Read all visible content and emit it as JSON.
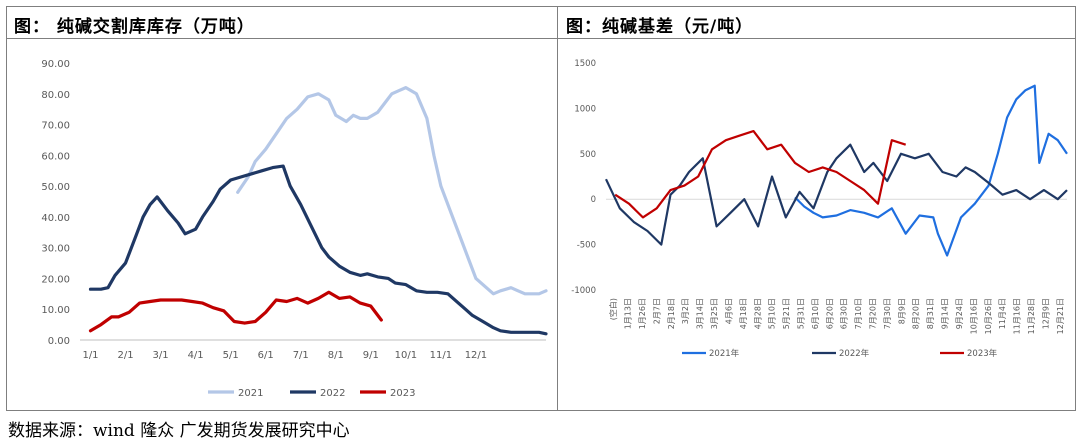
{
  "panels": [
    {
      "title": "图：  纯碱交割库库存（万吨）"
    },
    {
      "title": "图：纯碱基差（元/吨）"
    }
  ],
  "source": "数据来源：wind 隆众 广发期货发展研究中心",
  "chart_data": [
    {
      "type": "line",
      "title": "纯碱交割库库存（万吨）",
      "xlabel": "",
      "ylabel": "",
      "ylim": [
        0,
        90
      ],
      "yticks": [
        "0.00",
        "10.00",
        "20.00",
        "30.00",
        "40.00",
        "50.00",
        "60.00",
        "70.00",
        "80.00",
        "90.00"
      ],
      "xticks": [
        "1/1",
        "2/1",
        "3/1",
        "4/1",
        "5/1",
        "6/1",
        "7/1",
        "8/1",
        "9/1",
        "10/1",
        "11/1",
        "12/1"
      ],
      "grid": false,
      "legend": "bottom",
      "series": [
        {
          "name": "2021",
          "color": "#b4c7e7",
          "x": [
            4.5,
            4.8,
            5.0,
            5.3,
            5.6,
            5.9,
            6.2,
            6.5,
            6.8,
            7.1,
            7.3,
            7.6,
            7.8,
            8.0,
            8.2,
            8.5,
            8.7,
            8.9,
            9.1,
            9.3,
            9.6,
            9.9,
            10.1,
            10.3,
            10.6,
            10.9,
            11.1,
            11.3,
            11.6,
            11.8,
            12.0,
            12.3,
            12.5,
            12.7,
            12.9,
            13.1,
            13.3
          ],
          "y": [
            48,
            53,
            58,
            62,
            67,
            72,
            75,
            79,
            80,
            78,
            73,
            71,
            73,
            72,
            72,
            74,
            77,
            80,
            81,
            82,
            80,
            72,
            60,
            50,
            41,
            32,
            26,
            20,
            17,
            15,
            16,
            17,
            16,
            15,
            15,
            15,
            16
          ]
        },
        {
          "name": "2022",
          "color": "#1f3864",
          "x": [
            0.3,
            0.6,
            0.8,
            1.0,
            1.3,
            1.6,
            1.8,
            2.0,
            2.2,
            2.5,
            2.8,
            3.0,
            3.3,
            3.5,
            3.8,
            4.0,
            4.3,
            4.6,
            4.9,
            5.2,
            5.5,
            5.8,
            6.0,
            6.3,
            6.6,
            6.9,
            7.1,
            7.4,
            7.7,
            8.0,
            8.2,
            8.5,
            8.8,
            9.0,
            9.3,
            9.6,
            9.9,
            10.2,
            10.5,
            10.8,
            11.0,
            11.2,
            11.5,
            11.8,
            12.0,
            12.3,
            12.6,
            12.9,
            13.1,
            13.3
          ],
          "y": [
            16.5,
            16.5,
            17,
            21,
            25,
            34,
            40,
            44,
            46.5,
            42,
            38,
            34.5,
            36,
            40,
            45,
            49,
            52,
            53,
            54,
            55,
            56,
            56.5,
            50,
            44,
            37,
            30,
            27,
            24,
            22,
            21,
            21.5,
            20.5,
            20,
            18.5,
            18,
            16,
            15.5,
            15.5,
            15,
            12,
            10,
            8,
            6,
            4,
            3,
            2.5,
            2.5,
            2.5,
            2.5,
            2
          ]
        },
        {
          "name": "2023",
          "color": "#c00000",
          "x": [
            0.3,
            0.6,
            0.9,
            1.1,
            1.4,
            1.7,
            2.0,
            2.3,
            2.6,
            2.9,
            3.2,
            3.5,
            3.8,
            4.1,
            4.4,
            4.7,
            5.0,
            5.3,
            5.6,
            5.9,
            6.2,
            6.5,
            6.8,
            7.1,
            7.4,
            7.7,
            8.0,
            8.3,
            8.6
          ],
          "y": [
            3,
            5,
            7.5,
            7.5,
            9,
            12,
            12.5,
            13,
            13,
            13,
            12.5,
            12,
            10.5,
            9.5,
            6,
            5.5,
            6,
            9,
            13,
            12.5,
            13.5,
            12,
            13.5,
            15.5,
            13.5,
            14,
            12,
            11,
            6.5
          ]
        }
      ]
    },
    {
      "type": "line",
      "title": "纯碱基差（元/吨）",
      "xlabel": "",
      "ylabel": "",
      "ylim": [
        -1000,
        1500
      ],
      "yticks": [
        "-1000",
        "-500",
        "0",
        "500",
        "1000",
        "1500"
      ],
      "xticks": [
        "(空白)",
        "1月13日",
        "1月26日",
        "2月7日",
        "2月18日",
        "3月2日",
        "3月14日",
        "3月25日",
        "4月6日",
        "4月18日",
        "4月28日",
        "5月10日",
        "5月21日",
        "5月31日",
        "6月10日",
        "6月20日",
        "6月30日",
        "7月10日",
        "7月20日",
        "7月30日",
        "8月9日",
        "8月20日",
        "8月31日",
        "9月14日",
        "9月24日",
        "10月16日",
        "10月26日",
        "11月4日",
        "11月16日",
        "11月28日",
        "12月9日",
        "12月21日"
      ],
      "grid": false,
      "legend": "bottom",
      "series": [
        {
          "name": "2021年",
          "color": "#1f6fe0",
          "x": [
            0.41,
            0.43,
            0.45,
            0.47,
            0.5,
            0.53,
            0.56,
            0.59,
            0.62,
            0.65,
            0.68,
            0.71,
            0.72,
            0.74,
            0.77,
            0.8,
            0.83,
            0.85,
            0.87,
            0.89,
            0.91,
            0.93,
            0.94,
            0.96,
            0.98,
            1.0
          ],
          "y": [
            20,
            -80,
            -150,
            -200,
            -180,
            -120,
            -150,
            -200,
            -100,
            -380,
            -180,
            -200,
            -380,
            -620,
            -200,
            -50,
            150,
            500,
            900,
            1100,
            1200,
            1250,
            400,
            720,
            650,
            500
          ]
        },
        {
          "name": "2022年",
          "color": "#1f3864",
          "x": [
            0,
            0.03,
            0.06,
            0.09,
            0.12,
            0.14,
            0.16,
            0.18,
            0.21,
            0.24,
            0.27,
            0.3,
            0.33,
            0.36,
            0.39,
            0.42,
            0.45,
            0.48,
            0.5,
            0.53,
            0.56,
            0.58,
            0.61,
            0.64,
            0.67,
            0.7,
            0.73,
            0.76,
            0.78,
            0.8,
            0.83,
            0.86,
            0.89,
            0.92,
            0.95,
            0.98,
            1.0
          ],
          "y": [
            220,
            -100,
            -250,
            -350,
            -500,
            50,
            150,
            300,
            450,
            -300,
            -150,
            0,
            -300,
            250,
            -200,
            80,
            -100,
            300,
            450,
            600,
            300,
            400,
            200,
            500,
            450,
            500,
            300,
            250,
            350,
            300,
            180,
            50,
            100,
            0,
            100,
            0,
            100
          ]
        },
        {
          "name": "2023年",
          "color": "#c00000",
          "x": [
            0.02,
            0.05,
            0.08,
            0.11,
            0.14,
            0.17,
            0.2,
            0.23,
            0.26,
            0.29,
            0.32,
            0.35,
            0.38,
            0.41,
            0.44,
            0.47,
            0.5,
            0.53,
            0.56,
            0.59,
            0.62,
            0.65
          ],
          "y": [
            50,
            -50,
            -200,
            -100,
            100,
            150,
            250,
            550,
            650,
            700,
            750,
            550,
            600,
            400,
            300,
            350,
            300,
            200,
            100,
            -50,
            650,
            600
          ]
        }
      ]
    }
  ]
}
